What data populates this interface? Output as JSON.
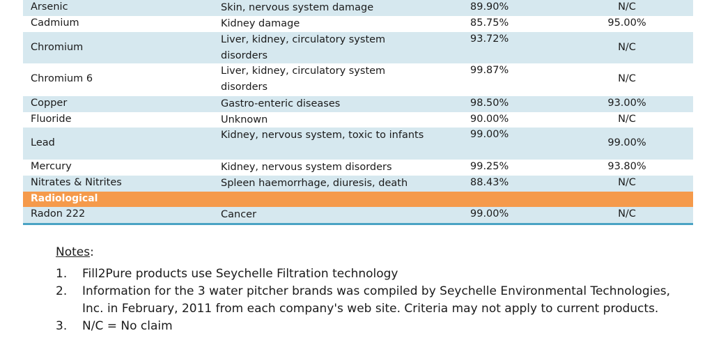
{
  "rows": [
    {
      "name": "Arsenic",
      "effects": "Skin, nervous system damage",
      "pitcher": "89.90%",
      "fill2pure": "N/C"
    },
    {
      "name": "Cadmium",
      "effects": "Kidney damage",
      "pitcher": "85.75%",
      "fill2pure": "95.00%"
    },
    {
      "name": "Chromium",
      "effects": "Liver, kidney, circulatory system disorders",
      "pitcher": "93.72%",
      "fill2pure": "N/C"
    },
    {
      "name": "Chromium 6",
      "effects": "Liver, kidney, circulatory system disorders",
      "pitcher": "99.87%",
      "fill2pure": "N/C"
    },
    {
      "name": "Copper",
      "effects": "Gastro-enteric diseases",
      "pitcher": "98.50%",
      "fill2pure": "93.00%"
    },
    {
      "name": "Fluoride",
      "effects": "Unknown",
      "pitcher": "90.00%",
      "fill2pure": "N/C"
    },
    {
      "name": "Lead",
      "effects": "Kidney, nervous system, toxic to infants",
      "pitcher": "99.00%",
      "fill2pure": "99.00%"
    },
    {
      "name": "Mercury",
      "effects": "Kidney, nervous system disorders",
      "pitcher": "99.25%",
      "fill2pure": "93.80%"
    },
    {
      "name": "Nitrates & Nitrites",
      "effects": "Spleen haemorrhage, diuresis, death",
      "pitcher": "88.43%",
      "fill2pure": "N/C"
    }
  ],
  "section": {
    "label": "Radiological",
    "color": "#f59a4b"
  },
  "radon": {
    "name": "Radon 222",
    "effects": "Cancer",
    "pitcher": "99.00%",
    "fill2pure": "N/C"
  },
  "notes": {
    "title": "Notes",
    "colon": ":",
    "items": [
      {
        "num": "1.",
        "lines": [
          "Fill2Pure products use Seychelle Filtration technology"
        ]
      },
      {
        "num": "2.",
        "lines": [
          "Information for the 3 water pitcher brands was compiled by Seychelle Environmental Technologies,",
          "Inc. in February, 2011 from each company's web site. Criteria may not apply to current products."
        ]
      },
      {
        "num": "3.",
        "lines": [
          "N/C = No claim"
        ]
      }
    ]
  }
}
